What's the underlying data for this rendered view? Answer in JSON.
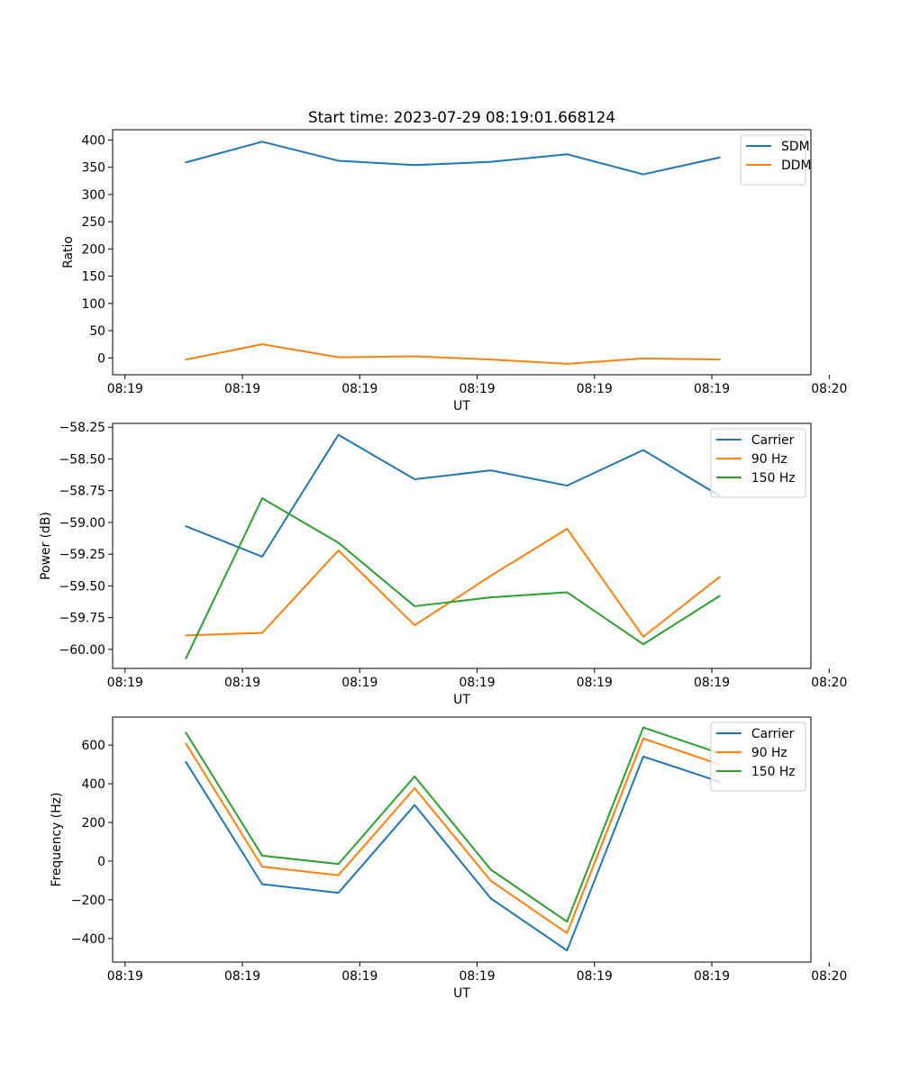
{
  "figure": {
    "title": "Start time: 2023-07-29 08:19:01.668124"
  },
  "chart_data": [
    {
      "type": "line",
      "title": "Start time: 2023-07-29 08:19:01.668124",
      "xlabel": "UT",
      "ylabel": "Ratio",
      "x": [
        1.0,
        2.0,
        3.0,
        4.0,
        5.0,
        6.0,
        7.0,
        8.0
      ],
      "xlim": [
        0.037,
        9.2
      ],
      "x_ticks": [
        0.2,
        1.74,
        3.28,
        4.82,
        6.36,
        7.9,
        9.44
      ],
      "x_tick_labels": [
        "08:19",
        "08:19",
        "08:19",
        "08:19",
        "08:19",
        "08:19",
        "08:20"
      ],
      "ylim": [
        -31,
        419
      ],
      "y_ticks": [
        0,
        50,
        100,
        150,
        200,
        250,
        300,
        350,
        400
      ],
      "y_tick_labels": [
        "0",
        "50",
        "100",
        "150",
        "200",
        "250",
        "300",
        "350",
        "400"
      ],
      "legend_position": "top-right",
      "series": [
        {
          "name": "SDM",
          "color": "#1f77b4",
          "values": [
            359,
            397,
            362,
            354,
            360,
            374,
            337,
            368
          ]
        },
        {
          "name": "DDM",
          "color": "#ff7f0e",
          "values": [
            -3,
            25,
            1,
            3,
            -3,
            -11,
            -1,
            -3
          ]
        }
      ]
    },
    {
      "type": "line",
      "title": "",
      "xlabel": "UT",
      "ylabel": "Power (dB)",
      "x": [
        1.0,
        2.0,
        3.0,
        4.0,
        5.0,
        6.0,
        7.0,
        8.0
      ],
      "xlim": [
        0.037,
        9.2
      ],
      "x_ticks": [
        0.2,
        1.74,
        3.28,
        4.82,
        6.36,
        7.9,
        9.44
      ],
      "x_tick_labels": [
        "08:19",
        "08:19",
        "08:19",
        "08:19",
        "08:19",
        "08:19",
        "08:20"
      ],
      "ylim": [
        -60.15,
        -58.22
      ],
      "y_ticks": [
        -60.0,
        -59.75,
        -59.5,
        -59.25,
        -59.0,
        -58.75,
        -58.5,
        -58.25
      ],
      "y_tick_labels": [
        "−60.00",
        "−59.75",
        "−59.50",
        "−59.25",
        "−59.00",
        "−58.75",
        "−58.50",
        "−58.25"
      ],
      "legend_position": "top-right",
      "series": [
        {
          "name": "Carrier",
          "color": "#1f77b4",
          "values": [
            -59.03,
            -59.27,
            -58.31,
            -58.66,
            -58.59,
            -58.71,
            -58.43,
            -58.79
          ]
        },
        {
          "name": "90 Hz",
          "color": "#ff7f0e",
          "values": [
            -59.89,
            -59.87,
            -59.22,
            -59.81,
            -59.42,
            -59.05,
            -59.9,
            -59.43
          ]
        },
        {
          "name": "150 Hz",
          "color": "#2ca02c",
          "values": [
            -60.07,
            -58.81,
            -59.16,
            -59.66,
            -59.59,
            -59.55,
            -59.96,
            -59.58
          ]
        }
      ]
    },
    {
      "type": "line",
      "title": "",
      "xlabel": "UT",
      "ylabel": "Frequency (Hz)",
      "x": [
        1.0,
        2.0,
        3.0,
        4.0,
        5.0,
        6.0,
        7.0,
        8.0
      ],
      "xlim": [
        0.037,
        9.2
      ],
      "x_ticks": [
        0.2,
        1.74,
        3.28,
        4.82,
        6.36,
        7.9,
        9.44
      ],
      "x_tick_labels": [
        "08:19",
        "08:19",
        "08:19",
        "08:19",
        "08:19",
        "08:19",
        "08:20"
      ],
      "ylim": [
        -522,
        745
      ],
      "y_ticks": [
        -400,
        -200,
        0,
        200,
        400,
        600
      ],
      "y_tick_labels": [
        "−400",
        "−200",
        "0",
        "200",
        "400",
        "600"
      ],
      "legend_position": "top-right",
      "series": [
        {
          "name": "Carrier",
          "color": "#1f77b4",
          "values": [
            512,
            -119,
            -164,
            290,
            -193,
            -462,
            541,
            411
          ]
        },
        {
          "name": "90 Hz",
          "color": "#ff7f0e",
          "values": [
            607,
            -29,
            -73,
            377,
            -102,
            -372,
            634,
            500
          ]
        },
        {
          "name": "150 Hz",
          "color": "#2ca02c",
          "values": [
            664,
            28,
            -15,
            438,
            -44,
            -313,
            691,
            558
          ]
        }
      ]
    }
  ]
}
